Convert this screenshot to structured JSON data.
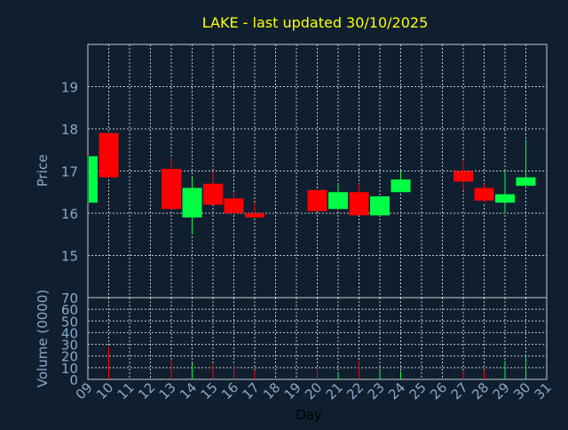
{
  "chart_data": {
    "type": "candlestick",
    "title": "LAKE - last updated 30/10/2025",
    "colors": {
      "background": "#0f1f30",
      "plot_background": "#0f1f30",
      "title": "#ffff00",
      "axis_label": "#8aa8c8",
      "tick_label": "#8aa8c8",
      "grid": "#c8c8c8",
      "frame": "#c8c8c8",
      "up": "#00ff44",
      "down": "#ff0000"
    },
    "price_panel": {
      "ylabel": "Price",
      "ylim": [
        14.0,
        20.0
      ],
      "yticks": [
        15,
        16,
        17,
        18,
        19
      ],
      "ytick_labels": [
        "15",
        "16",
        "17",
        "18",
        "19"
      ]
    },
    "volume_panel": {
      "ylabel": "Volume (0000)",
      "ylim": [
        0,
        70
      ],
      "yticks": [
        0,
        10,
        20,
        30,
        40,
        50,
        60,
        70
      ],
      "ytick_labels": [
        "0",
        "10",
        "20",
        "30",
        "40",
        "50",
        "60",
        "70"
      ]
    },
    "xaxis": {
      "xlabel": "Day",
      "range": [
        9,
        31
      ],
      "tick_values": [
        9,
        10,
        11,
        12,
        13,
        14,
        15,
        16,
        17,
        18,
        19,
        20,
        21,
        22,
        23,
        24,
        25,
        26,
        27,
        28,
        29,
        30,
        31
      ],
      "tick_labels": [
        "09",
        "10",
        "11",
        "12",
        "13",
        "14",
        "15",
        "16",
        "17",
        "18",
        "19",
        "20",
        "21",
        "22",
        "23",
        "24",
        "25",
        "26",
        "27",
        "28",
        "29",
        "30",
        "31"
      ]
    },
    "candles": [
      {
        "day": 9,
        "open": 16.25,
        "high": 17.35,
        "low": 16.25,
        "close": 17.35,
        "volume": 0
      },
      {
        "day": 10,
        "open": 17.9,
        "high": 17.9,
        "low": 16.85,
        "close": 16.85,
        "volume": 28
      },
      {
        "day": 13,
        "open": 17.05,
        "high": 17.3,
        "low": 16.1,
        "close": 16.1,
        "volume": 17
      },
      {
        "day": 14,
        "open": 15.9,
        "high": 16.85,
        "low": 15.5,
        "close": 16.6,
        "volume": 14
      },
      {
        "day": 15,
        "open": 16.7,
        "high": 17.0,
        "low": 16.2,
        "close": 16.2,
        "volume": 13
      },
      {
        "day": 16,
        "open": 16.35,
        "high": 16.5,
        "low": 16.0,
        "close": 16.0,
        "volume": 12
      },
      {
        "day": 17,
        "open": 16.0,
        "high": 16.25,
        "low": 15.9,
        "close": 15.9,
        "volume": 8
      },
      {
        "day": 20,
        "open": 16.55,
        "high": 16.55,
        "low": 16.05,
        "close": 16.05,
        "volume": 10
      },
      {
        "day": 21,
        "open": 16.1,
        "high": 16.7,
        "low": 16.1,
        "close": 16.5,
        "volume": 5
      },
      {
        "day": 22,
        "open": 16.5,
        "high": 16.7,
        "low": 15.95,
        "close": 15.95,
        "volume": 16
      },
      {
        "day": 23,
        "open": 15.95,
        "high": 16.4,
        "low": 15.95,
        "close": 16.4,
        "volume": 8
      },
      {
        "day": 24,
        "open": 16.5,
        "high": 17.0,
        "low": 16.5,
        "close": 16.8,
        "volume": 7
      },
      {
        "day": 27,
        "open": 17.0,
        "high": 17.25,
        "low": 16.55,
        "close": 16.75,
        "volume": 7
      },
      {
        "day": 28,
        "open": 16.6,
        "high": 16.7,
        "low": 16.25,
        "close": 16.3,
        "volume": 8
      },
      {
        "day": 29,
        "open": 16.25,
        "high": 17.0,
        "low": 16.0,
        "close": 16.45,
        "volume": 16
      },
      {
        "day": 30,
        "open": 16.65,
        "high": 17.75,
        "low": 16.65,
        "close": 16.85,
        "volume": 20
      }
    ]
  }
}
